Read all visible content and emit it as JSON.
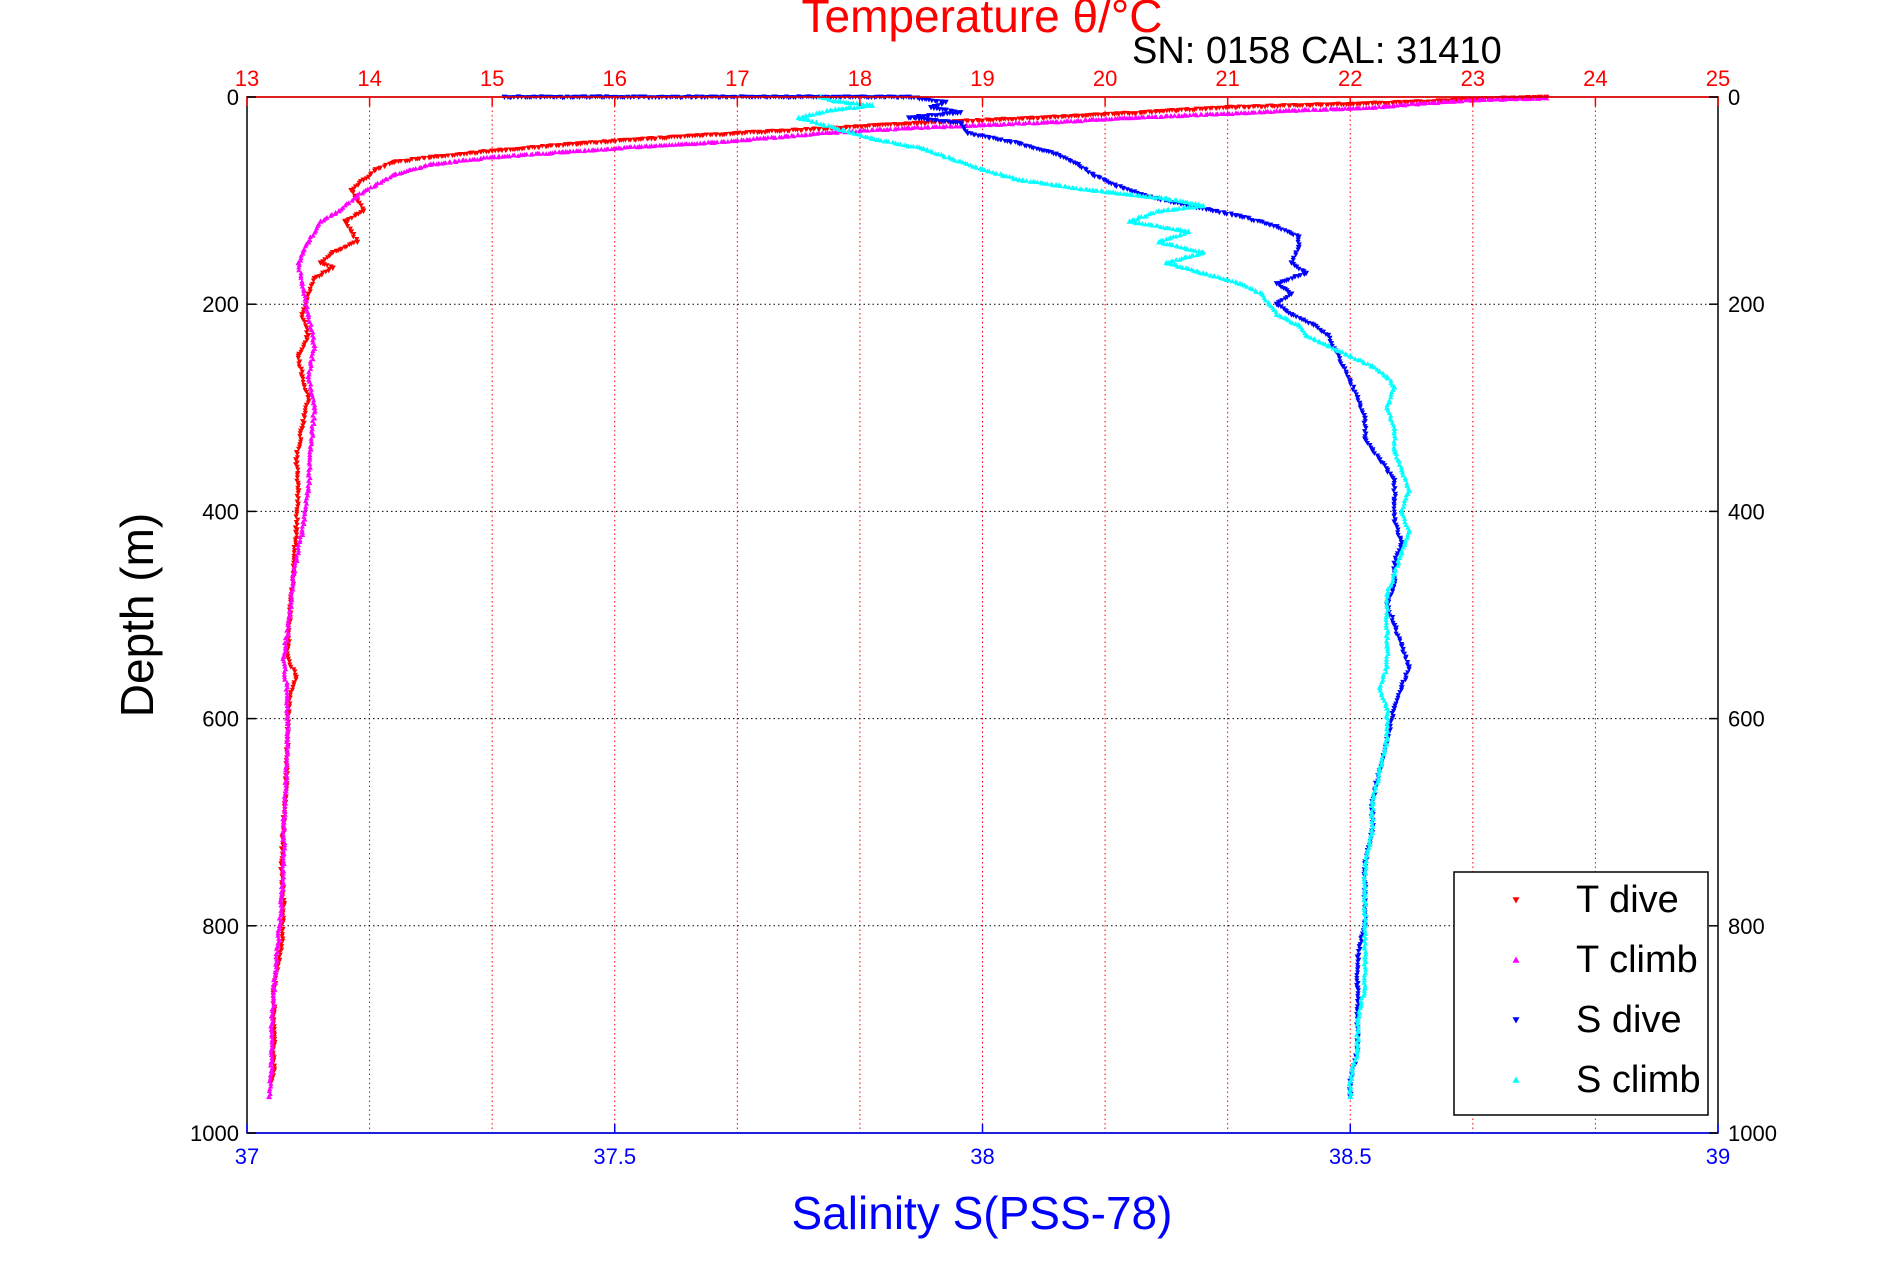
{
  "chart_data": {
    "type": "scatter",
    "top_title": "Temperature θ/°C",
    "annotation": "SN: 0158  CAL: 31410",
    "ylabel": "Depth (m)",
    "xlabel_bottom": "Salinity S(PSS-78)",
    "ylim": [
      0,
      1000
    ],
    "y_reversed": true,
    "yticks": [
      "0",
      "200",
      "400",
      "600",
      "800",
      "1000"
    ],
    "temperature_axis": {
      "range": [
        13,
        25
      ],
      "ticks": [
        "13",
        "14",
        "15",
        "16",
        "17",
        "18",
        "19",
        "20",
        "21",
        "22",
        "23",
        "24",
        "25"
      ]
    },
    "salinity_axis": {
      "range": [
        37,
        39
      ],
      "ticks": [
        "37",
        "37.5",
        "38",
        "38.5",
        "39"
      ]
    },
    "grid": true,
    "legend_placement": "bottom-right",
    "series": [
      {
        "name": "T dive",
        "axis": "temperature",
        "color": "#ff0000",
        "marker": "triangle-down",
        "points": [
          [
            23.6,
            0
          ],
          [
            23.0,
            2
          ],
          [
            22.5,
            5
          ],
          [
            21.0,
            10
          ],
          [
            20.3,
            15
          ],
          [
            19.5,
            20
          ],
          [
            18.5,
            25
          ],
          [
            17.8,
            30
          ],
          [
            17.0,
            35
          ],
          [
            16.3,
            40
          ],
          [
            15.7,
            45
          ],
          [
            15.0,
            52
          ],
          [
            14.5,
            58
          ],
          [
            14.2,
            63
          ],
          [
            14.05,
            70
          ],
          [
            13.95,
            80
          ],
          [
            13.85,
            90
          ],
          [
            13.9,
            100
          ],
          [
            13.95,
            110
          ],
          [
            13.8,
            120
          ],
          [
            13.85,
            130
          ],
          [
            13.9,
            140
          ],
          [
            13.7,
            150
          ],
          [
            13.6,
            160
          ],
          [
            13.7,
            165
          ],
          [
            13.55,
            175
          ],
          [
            13.5,
            190
          ],
          [
            13.45,
            210
          ],
          [
            13.5,
            230
          ],
          [
            13.42,
            250
          ],
          [
            13.45,
            270
          ],
          [
            13.5,
            290
          ],
          [
            13.45,
            320
          ],
          [
            13.4,
            350
          ],
          [
            13.42,
            380
          ],
          [
            13.4,
            420
          ],
          [
            13.38,
            460
          ],
          [
            13.35,
            500
          ],
          [
            13.33,
            540
          ],
          [
            13.4,
            560
          ],
          [
            13.35,
            580
          ],
          [
            13.33,
            620
          ],
          [
            13.32,
            660
          ],
          [
            13.3,
            700
          ],
          [
            13.28,
            740
          ],
          [
            13.3,
            780
          ],
          [
            13.28,
            820
          ],
          [
            13.22,
            860
          ],
          [
            13.22,
            900
          ],
          [
            13.22,
            940
          ],
          [
            13.2,
            950
          ]
        ]
      },
      {
        "name": "T climb",
        "axis": "temperature",
        "color": "#ff00ff",
        "marker": "triangle-up",
        "points": [
          [
            13.18,
            965
          ],
          [
            13.2,
            940
          ],
          [
            13.2,
            900
          ],
          [
            13.22,
            860
          ],
          [
            13.25,
            820
          ],
          [
            13.28,
            780
          ],
          [
            13.3,
            740
          ],
          [
            13.3,
            700
          ],
          [
            13.32,
            660
          ],
          [
            13.33,
            620
          ],
          [
            13.33,
            580
          ],
          [
            13.3,
            540
          ],
          [
            13.35,
            500
          ],
          [
            13.38,
            460
          ],
          [
            13.45,
            420
          ],
          [
            13.5,
            380
          ],
          [
            13.52,
            340
          ],
          [
            13.55,
            300
          ],
          [
            13.5,
            270
          ],
          [
            13.55,
            240
          ],
          [
            13.5,
            210
          ],
          [
            13.45,
            180
          ],
          [
            13.42,
            160
          ],
          [
            13.5,
            140
          ],
          [
            13.6,
            120
          ],
          [
            13.75,
            110
          ],
          [
            13.9,
            95
          ],
          [
            14.05,
            85
          ],
          [
            14.2,
            75
          ],
          [
            14.5,
            65
          ],
          [
            15.0,
            58
          ],
          [
            15.6,
            53
          ],
          [
            16.2,
            48
          ],
          [
            16.8,
            44
          ],
          [
            17.4,
            38
          ],
          [
            17.8,
            34
          ],
          [
            18.4,
            30
          ],
          [
            19.0,
            27
          ],
          [
            19.6,
            24
          ],
          [
            20.2,
            20
          ],
          [
            21.0,
            16
          ],
          [
            21.5,
            13
          ],
          [
            22.0,
            11
          ],
          [
            22.3,
            9
          ],
          [
            22.6,
            6
          ],
          [
            23.0,
            3
          ],
          [
            23.6,
            1
          ]
        ]
      },
      {
        "name": "S dive",
        "axis": "salinity",
        "color": "#0000ff",
        "marker": "triangle-down",
        "points": [
          [
            37.35,
            0
          ],
          [
            37.9,
            0
          ],
          [
            37.95,
            5
          ],
          [
            37.93,
            10
          ],
          [
            37.97,
            15
          ],
          [
            37.9,
            20
          ],
          [
            37.97,
            25
          ],
          [
            37.98,
            35
          ],
          [
            38.05,
            45
          ],
          [
            38.1,
            55
          ],
          [
            38.13,
            65
          ],
          [
            38.15,
            75
          ],
          [
            38.18,
            85
          ],
          [
            38.22,
            95
          ],
          [
            38.28,
            105
          ],
          [
            38.35,
            115
          ],
          [
            38.4,
            125
          ],
          [
            38.43,
            135
          ],
          [
            38.43,
            145
          ],
          [
            38.42,
            160
          ],
          [
            38.44,
            170
          ],
          [
            38.4,
            180
          ],
          [
            38.42,
            190
          ],
          [
            38.4,
            200
          ],
          [
            38.42,
            210
          ],
          [
            38.45,
            220
          ],
          [
            38.47,
            230
          ],
          [
            38.48,
            245
          ],
          [
            38.49,
            260
          ],
          [
            38.5,
            275
          ],
          [
            38.51,
            290
          ],
          [
            38.52,
            310
          ],
          [
            38.52,
            330
          ],
          [
            38.54,
            350
          ],
          [
            38.56,
            370
          ],
          [
            38.56,
            390
          ],
          [
            38.56,
            410
          ],
          [
            38.57,
            430
          ],
          [
            38.56,
            450
          ],
          [
            38.56,
            470
          ],
          [
            38.55,
            490
          ],
          [
            38.56,
            510
          ],
          [
            38.57,
            530
          ],
          [
            38.58,
            550
          ],
          [
            38.57,
            570
          ],
          [
            38.56,
            590
          ],
          [
            38.55,
            620
          ],
          [
            38.54,
            650
          ],
          [
            38.53,
            680
          ],
          [
            38.53,
            710
          ],
          [
            38.52,
            740
          ],
          [
            38.52,
            770
          ],
          [
            38.52,
            800
          ],
          [
            38.51,
            830
          ],
          [
            38.51,
            860
          ],
          [
            38.51,
            890
          ],
          [
            38.51,
            920
          ],
          [
            38.5,
            950
          ],
          [
            38.5,
            965
          ]
        ]
      },
      {
        "name": "S climb",
        "axis": "salinity",
        "color": "#00ffff",
        "marker": "triangle-up",
        "points": [
          [
            38.5,
            965
          ],
          [
            38.5,
            950
          ],
          [
            38.51,
            920
          ],
          [
            38.51,
            890
          ],
          [
            38.52,
            860
          ],
          [
            38.52,
            830
          ],
          [
            38.52,
            800
          ],
          [
            38.52,
            770
          ],
          [
            38.52,
            740
          ],
          [
            38.53,
            710
          ],
          [
            38.53,
            680
          ],
          [
            38.54,
            650
          ],
          [
            38.55,
            620
          ],
          [
            38.55,
            590
          ],
          [
            38.54,
            570
          ],
          [
            38.55,
            550
          ],
          [
            38.55,
            530
          ],
          [
            38.55,
            500
          ],
          [
            38.55,
            480
          ],
          [
            38.56,
            460
          ],
          [
            38.57,
            440
          ],
          [
            38.58,
            420
          ],
          [
            38.57,
            400
          ],
          [
            38.58,
            380
          ],
          [
            38.57,
            360
          ],
          [
            38.56,
            340
          ],
          [
            38.56,
            320
          ],
          [
            38.55,
            300
          ],
          [
            38.56,
            280
          ],
          [
            38.55,
            270
          ],
          [
            38.53,
            260
          ],
          [
            38.5,
            250
          ],
          [
            38.47,
            240
          ],
          [
            38.44,
            230
          ],
          [
            38.43,
            220
          ],
          [
            38.4,
            210
          ],
          [
            38.39,
            200
          ],
          [
            38.38,
            190
          ],
          [
            38.35,
            180
          ],
          [
            38.3,
            170
          ],
          [
            38.25,
            160
          ],
          [
            38.3,
            150
          ],
          [
            38.24,
            140
          ],
          [
            38.28,
            130
          ],
          [
            38.2,
            120
          ],
          [
            38.24,
            110
          ],
          [
            38.3,
            105
          ],
          [
            38.25,
            98
          ],
          [
            38.15,
            90
          ],
          [
            38.1,
            85
          ],
          [
            38.05,
            80
          ],
          [
            38.0,
            70
          ],
          [
            37.96,
            60
          ],
          [
            37.92,
            50
          ],
          [
            37.85,
            40
          ],
          [
            37.8,
            30
          ],
          [
            37.75,
            20
          ],
          [
            37.8,
            12
          ],
          [
            37.85,
            8
          ],
          [
            37.8,
            4
          ],
          [
            37.78,
            0
          ]
        ]
      }
    ]
  }
}
